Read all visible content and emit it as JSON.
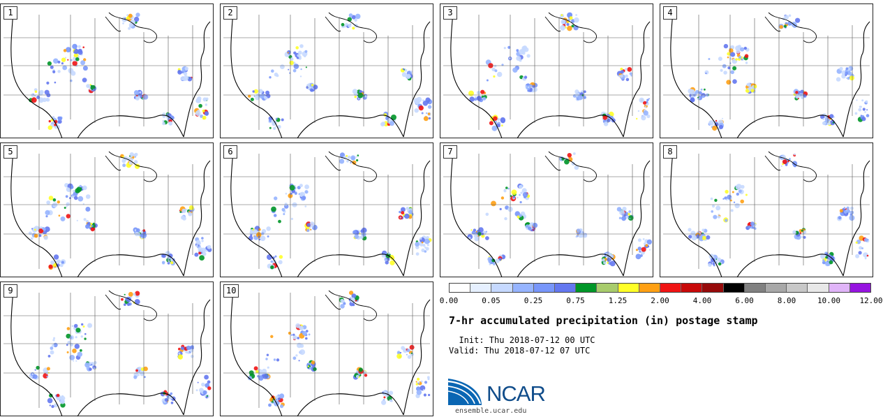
{
  "panels": [
    {
      "label": "1"
    },
    {
      "label": "2"
    },
    {
      "label": "3"
    },
    {
      "label": "4"
    },
    {
      "label": "5"
    },
    {
      "label": "6"
    },
    {
      "label": "7"
    },
    {
      "label": "8"
    },
    {
      "label": "9"
    },
    {
      "label": "10"
    }
  ],
  "legend": {
    "colors": [
      "#ffffff",
      "#e6f0ff",
      "#c6d9ff",
      "#96b4ff",
      "#7896fa",
      "#6478f0",
      "#009628",
      "#a8cc6c",
      "#ffff28",
      "#ffa014",
      "#f01414",
      "#c80a0a",
      "#960a0a",
      "#000000",
      "#808080",
      "#a8a8a8",
      "#c8c8c8",
      "#e8e8e8",
      "#e0b4f8",
      "#9614e0"
    ],
    "ticks": [
      "0.00",
      "0.05",
      "0.25",
      "0.75",
      "1.25",
      "2.00",
      "4.00",
      "6.00",
      "8.00",
      "10.00",
      "12.00"
    ]
  },
  "title": "7-hr accumulated precipitation (in) postage stamp",
  "init": "  Init: Thu 2018-07-12 00 UTC",
  "valid": "Valid: Thu 2018-07-12 07 UTC",
  "logo_text": "NCAR",
  "url": "ensemble.ucar.edu"
}
